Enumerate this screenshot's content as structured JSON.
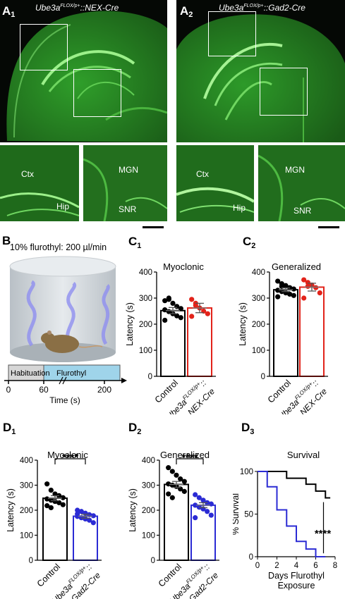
{
  "panel_a": {
    "a1_letter": "A",
    "a1_sub": "1",
    "a2_letter": "A",
    "a2_sub": "2",
    "a1_genotype_base": "Ube3a",
    "a1_genotype_sup": "FLOX/p+",
    "a1_genotype_tail": "::NEX-Cre",
    "a2_genotype_base": "Ube3a",
    "a2_genotype_sup": "FLOX/p+",
    "a2_genotype_tail": "::Gad2-Cre",
    "regions": {
      "ctx": "Ctx",
      "hip": "Hip",
      "mgn": "MGN",
      "snr": "SNR"
    },
    "stain_color": "#35c42e"
  },
  "panel_b": {
    "letter": "B",
    "title": "10% flurothyl: 200 µl/min",
    "phase1": "Habituation",
    "phase2": "Flurothyl",
    "ticks": [
      "0",
      "60",
      "200"
    ],
    "xlabel": "Time (s)",
    "habituation_color": "#d6d6d6",
    "flurothyl_color": "#9fd4ea"
  },
  "chart_data": [
    {
      "id": "C1",
      "letter": "C",
      "sub": "1",
      "type": "bar",
      "title": "Myoclonic",
      "ylabel": "Latency (s)",
      "ylim": [
        0,
        400
      ],
      "yticks": [
        0,
        100,
        200,
        300,
        400
      ],
      "categories": [
        "Control",
        "Ube3a FLOX/p+:: NEX-Cre"
      ],
      "values": [
        252,
        262
      ],
      "sem": [
        12,
        18
      ],
      "points": [
        [
          290,
          295,
          280,
          268,
          260,
          255,
          248,
          240,
          232,
          225,
          215,
          300
        ],
        [
          295,
          280,
          262,
          250,
          240,
          230,
          272
        ]
      ],
      "colors": [
        "#000000",
        "#e2231a"
      ]
    },
    {
      "id": "C2",
      "letter": "C",
      "sub": "2",
      "type": "bar",
      "title": "Generalized",
      "ylabel": "Latency (s)",
      "ylim": [
        0,
        400
      ],
      "yticks": [
        0,
        100,
        200,
        300,
        400
      ],
      "categories": [
        "Control",
        "Ube3a FLOX/p+:: NEX-Cre"
      ],
      "values": [
        332,
        342
      ],
      "sem": [
        7,
        15
      ],
      "points": [
        [
          365,
          355,
          348,
          340,
          335,
          330,
          325,
          320,
          315,
          310,
          305,
          345
        ],
        [
          370,
          360,
          350,
          340,
          320,
          300,
          345
        ]
      ],
      "colors": [
        "#000000",
        "#e2231a"
      ]
    },
    {
      "id": "D1",
      "letter": "D",
      "sub": "1",
      "type": "bar",
      "title": "Myoclonic",
      "ylabel": "Latency (s)",
      "ylim": [
        0,
        400
      ],
      "yticks": [
        0,
        100,
        200,
        300,
        400
      ],
      "categories": [
        "Control",
        "Ube3a FLOX/p+:: Gad2-Cre"
      ],
      "values": [
        248,
        176
      ],
      "sem": [
        10,
        8
      ],
      "points": [
        [
          305,
          280,
          265,
          258,
          250,
          245,
          240,
          235,
          230,
          222,
          218,
          210
        ],
        [
          200,
          195,
          188,
          182,
          178,
          175,
          170,
          165,
          160,
          150,
          185
        ]
      ],
      "colors": [
        "#000000",
        "#2b2bd4"
      ],
      "significance": "****"
    },
    {
      "id": "D2",
      "letter": "D",
      "sub": "2",
      "type": "bar",
      "title": "Generalized",
      "ylabel": "Latency (s)",
      "ylim": [
        0,
        400
      ],
      "yticks": [
        0,
        100,
        200,
        300,
        400
      ],
      "categories": [
        "Control",
        "Ube3a FLOX/p+:: Gad2-Cre"
      ],
      "values": [
        303,
        220
      ],
      "sem": [
        12,
        10
      ],
      "points": [
        [
          370,
          355,
          340,
          325,
          315,
          305,
          300,
          295,
          285,
          275,
          265,
          250
        ],
        [
          262,
          250,
          240,
          230,
          225,
          220,
          212,
          205,
          195,
          180,
          170
        ]
      ],
      "colors": [
        "#000000",
        "#2b2bd4"
      ],
      "significance": "****"
    },
    {
      "id": "D3",
      "letter": "D",
      "sub": "3",
      "type": "line",
      "title": "Survival",
      "ylabel": "% Survival",
      "xlabel": "Days Flurothyl Exposure",
      "xlim": [
        0,
        8
      ],
      "ylim": [
        0,
        100
      ],
      "xticks": [
        0,
        2,
        4,
        6,
        8
      ],
      "yticks": [
        0,
        50,
        100
      ],
      "series": [
        {
          "x": [
            0,
            3,
            5,
            6,
            7,
            7.5
          ],
          "y": [
            100,
            92,
            85,
            77,
            69,
            69
          ],
          "color": "#000000"
        },
        {
          "x": [
            0,
            1,
            2,
            3,
            4,
            5,
            6,
            7
          ],
          "y": [
            100,
            82,
            55,
            36,
            18,
            9,
            0,
            0
          ],
          "color": "#2b2bd4"
        }
      ],
      "significance": "****"
    }
  ],
  "tick_labels": {
    "y": [
      "0",
      "100",
      "200",
      "300",
      "400"
    ],
    "d3_x": [
      "0",
      "2",
      "4",
      "6",
      "8"
    ],
    "d3_y": [
      "0",
      "50",
      "100"
    ]
  },
  "cat_labels": {
    "control": "Control",
    "gene": "Ube3a",
    "gene_sup": "FLOX/p+",
    "colons": "::",
    "nex": "NEX-Cre",
    "gad": "Gad2-Cre"
  }
}
